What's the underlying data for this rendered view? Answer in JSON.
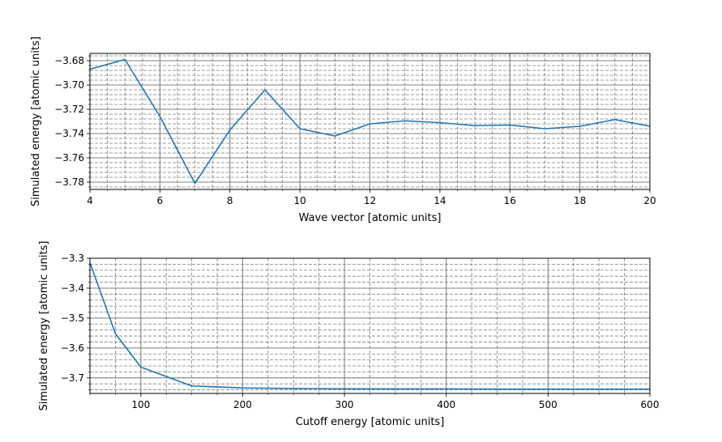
{
  "chart_data": [
    {
      "type": "line",
      "xlabel": "Wave vector [atomic units]",
      "ylabel": "Simulated energy [atomic units]",
      "xlim": [
        4,
        20
      ],
      "ylim": [
        -3.786,
        -3.674
      ],
      "xticks": [
        4,
        6,
        8,
        10,
        12,
        14,
        16,
        18,
        20
      ],
      "xtick_labels": [
        "4",
        "6",
        "8",
        "10",
        "12",
        "14",
        "16",
        "18",
        "20"
      ],
      "yticks": [
        -3.78,
        -3.76,
        -3.74,
        -3.72,
        -3.7,
        -3.68
      ],
      "ytick_labels": [
        "−3.78",
        "−3.76",
        "−3.74",
        "−3.72",
        "−3.70",
        "−3.68"
      ],
      "grid": true,
      "series": [
        {
          "color": "#1f77b4",
          "x": [
            4,
            5,
            6,
            7,
            8,
            9,
            10,
            11,
            12,
            13,
            14,
            15,
            16,
            17,
            18,
            19,
            20
          ],
          "y": [
            -3.687,
            -3.679,
            -3.726,
            -3.781,
            -3.737,
            -3.704,
            -3.736,
            -3.742,
            -3.732,
            -3.7295,
            -3.731,
            -3.7335,
            -3.733,
            -3.736,
            -3.734,
            -3.7285,
            -3.734
          ]
        }
      ]
    },
    {
      "type": "line",
      "xlabel": "Cutoff energy [atomic units]",
      "ylabel": "Simulated energy [atomic units]",
      "xlim": [
        50,
        600
      ],
      "ylim": [
        -3.752,
        -3.3
      ],
      "xticks": [
        100,
        200,
        300,
        400,
        500,
        600
      ],
      "xtick_labels": [
        "100",
        "200",
        "300",
        "400",
        "500",
        "600"
      ],
      "yticks": [
        -3.7,
        -3.6,
        -3.5,
        -3.4,
        -3.3
      ],
      "ytick_labels": [
        "−3.7",
        "−3.6",
        "−3.5",
        "−3.4",
        "−3.3"
      ],
      "grid": true,
      "series": [
        {
          "color": "#1f77b4",
          "x": [
            50,
            75,
            100,
            150,
            200,
            250,
            300,
            350,
            400,
            450,
            500,
            550,
            600
          ],
          "y": [
            -3.315,
            -3.552,
            -3.664,
            -3.727,
            -3.7335,
            -3.7355,
            -3.7365,
            -3.737,
            -3.737,
            -3.7375,
            -3.7375,
            -3.7375,
            -3.7375
          ]
        }
      ]
    }
  ]
}
